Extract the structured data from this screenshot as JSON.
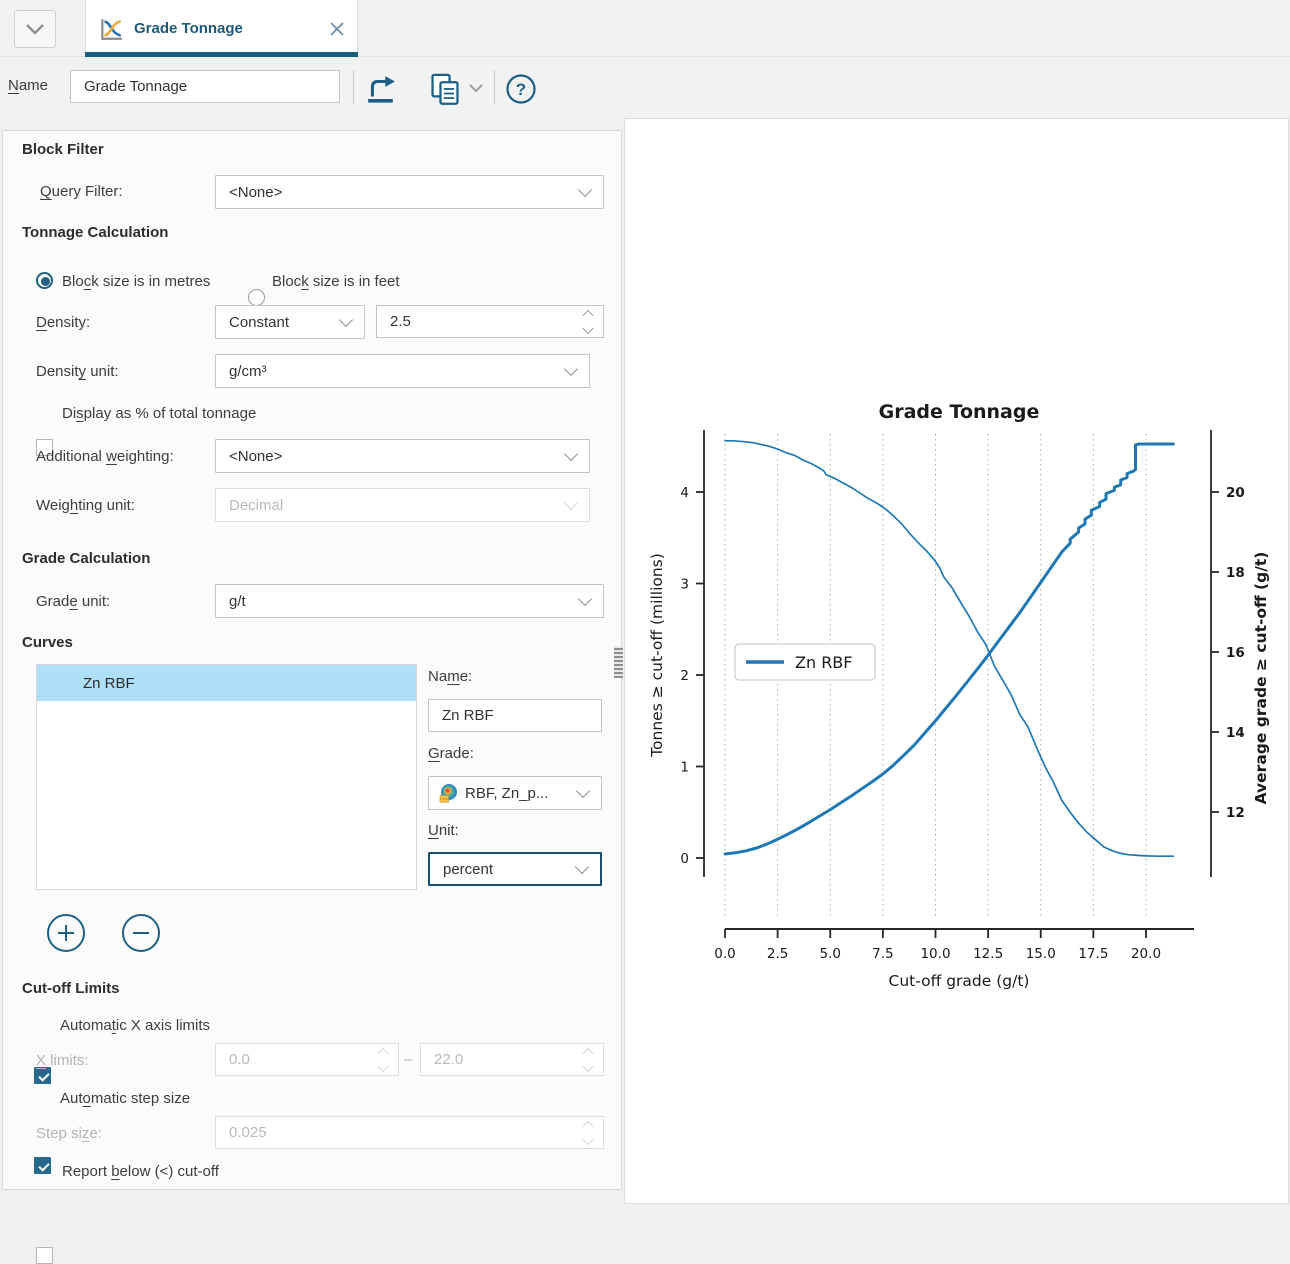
{
  "tab_bar": {
    "tab_title": "Grade Tonnage"
  },
  "toolbar": {
    "name_label": "[N]ame",
    "name_value": "Grade Tonnage"
  },
  "form": {
    "block_filter_heading": "Block Filter",
    "query_filter_label": "[Q]uery Filter:",
    "query_filter_value": "<None>",
    "tonnage_heading": "Tonnage Calculation",
    "radio_metres_label": "Blo[c]k size is in metres",
    "radio_feet_label": "Bloc[k] size is in feet",
    "density_label": "[D]ensity:",
    "density_mode_value": "Constant",
    "density_value": "2.5",
    "density_unit_label": "Densit[y] unit:",
    "density_unit_value": "g/cm³",
    "display_pct_label": "Di[s]play as % of total tonnage",
    "add_weight_label": "Additional [w]eighting:",
    "add_weight_value": "<None>",
    "weight_unit_label": "Weig[h]ting unit:",
    "weight_unit_value": "Decimal",
    "grade_calc_heading": "Grade Calculation",
    "grade_unit_label": "Grad[e] unit:",
    "grade_unit_value": "g/t",
    "curves_heading": "Curves",
    "curve_list": [
      "Zn RBF"
    ],
    "curve_name_label": "Na[m]e:",
    "curve_name_value": "Zn RBF",
    "curve_grade_label": "[G]rade:",
    "curve_grade_value": "RBF, Zn_p...",
    "curve_unit_label": "[U]nit:",
    "curve_unit_value": "percent",
    "cutoff_heading": "Cut-off Limits",
    "auto_x_label": "Automa[t]ic X axis limits",
    "x_limits_label": "[X] limits:",
    "x_min_value": "0.0",
    "range_dash": "–",
    "x_max_value": "22.0",
    "auto_step_label": "Aut[o]matic step size",
    "step_label": "Step si[z]e:",
    "step_value": "0.025",
    "report_below_label": "Report [b]elow (<) cut-off"
  },
  "chart_data": {
    "type": "line",
    "title": "Grade Tonnage",
    "xlabel": "Cut-off grade (g/t)",
    "ylabel_left": "Tonnes ≥ cut-off (millions)",
    "ylabel_right": "Average grade ≥ cut-off (g/t)",
    "legend": [
      "Zn RBF"
    ],
    "legend_position": "center-left",
    "series_color": "#1f77b4",
    "grid": "vertical-dotted",
    "xlim": [
      0,
      22.3
    ],
    "x_ticks": [
      0.0,
      2.5,
      5.0,
      7.5,
      10.0,
      12.5,
      15.0,
      17.5,
      20.0
    ],
    "ylim_left": [
      0,
      4.7
    ],
    "left_ticks": [
      0,
      1,
      2,
      3,
      4
    ],
    "ylim_right": [
      10.4,
      21.6
    ],
    "right_ticks": [
      12,
      14,
      16,
      18,
      20
    ],
    "series": [
      {
        "name": "Zn RBF",
        "role": "tonnage-above-cutoff",
        "axis": "left",
        "line_width": 1.7,
        "points": [
          [
            0,
            4.56
          ],
          [
            0.4,
            4.56
          ],
          [
            0.9,
            4.55
          ],
          [
            1.3,
            4.54
          ],
          [
            1.7,
            4.52
          ],
          [
            2.1,
            4.5
          ],
          [
            2.5,
            4.47
          ],
          [
            2.9,
            4.43
          ],
          [
            3.3,
            4.4
          ],
          [
            3.7,
            4.35
          ],
          [
            4.1,
            4.31
          ],
          [
            4.5,
            4.26
          ],
          [
            4.7,
            4.23
          ],
          [
            4.8,
            4.19
          ],
          [
            5.2,
            4.15
          ],
          [
            5.6,
            4.1
          ],
          [
            6.0,
            4.05
          ],
          [
            6.4,
            3.99
          ],
          [
            6.8,
            3.93
          ],
          [
            7.2,
            3.88
          ],
          [
            7.6,
            3.82
          ],
          [
            8.0,
            3.74
          ],
          [
            8.4,
            3.65
          ],
          [
            8.8,
            3.54
          ],
          [
            9.2,
            3.44
          ],
          [
            9.6,
            3.35
          ],
          [
            10.0,
            3.24
          ],
          [
            10.2,
            3.17
          ],
          [
            10.4,
            3.07
          ],
          [
            10.8,
            2.95
          ],
          [
            11.2,
            2.79
          ],
          [
            11.6,
            2.64
          ],
          [
            12.0,
            2.47
          ],
          [
            12.4,
            2.33
          ],
          [
            12.8,
            2.1
          ],
          [
            13.2,
            1.94
          ],
          [
            13.6,
            1.78
          ],
          [
            14.0,
            1.57
          ],
          [
            14.4,
            1.43
          ],
          [
            14.8,
            1.21
          ],
          [
            15.2,
            1.0
          ],
          [
            15.6,
            0.83
          ],
          [
            16.0,
            0.63
          ],
          [
            16.4,
            0.5
          ],
          [
            16.8,
            0.38
          ],
          [
            17.2,
            0.28
          ],
          [
            17.6,
            0.2
          ],
          [
            18.0,
            0.12
          ],
          [
            18.4,
            0.08
          ],
          [
            18.8,
            0.05
          ],
          [
            19.2,
            0.035
          ],
          [
            19.6,
            0.028
          ],
          [
            20.0,
            0.023
          ],
          [
            20.6,
            0.02
          ],
          [
            21.3,
            0.02
          ]
        ]
      },
      {
        "name": "Zn RBF",
        "role": "average-grade-above-cutoff",
        "axis": "right",
        "line_width": 3,
        "points": [
          [
            0,
            10.95
          ],
          [
            0.5,
            10.98
          ],
          [
            1.0,
            11.03
          ],
          [
            1.5,
            11.1
          ],
          [
            2.0,
            11.2
          ],
          [
            2.5,
            11.32
          ],
          [
            3.0,
            11.45
          ],
          [
            3.5,
            11.59
          ],
          [
            4.0,
            11.74
          ],
          [
            4.5,
            11.9
          ],
          [
            5.0,
            12.06
          ],
          [
            5.5,
            12.23
          ],
          [
            6.0,
            12.4
          ],
          [
            6.5,
            12.58
          ],
          [
            7.0,
            12.76
          ],
          [
            7.5,
            12.95
          ],
          [
            8.0,
            13.17
          ],
          [
            8.5,
            13.42
          ],
          [
            9.0,
            13.68
          ],
          [
            9.5,
            13.98
          ],
          [
            10.0,
            14.28
          ],
          [
            10.5,
            14.6
          ],
          [
            11.0,
            14.92
          ],
          [
            11.5,
            15.25
          ],
          [
            12.0,
            15.58
          ],
          [
            12.5,
            15.92
          ],
          [
            13.0,
            16.28
          ],
          [
            13.5,
            16.63
          ],
          [
            14.0,
            16.98
          ],
          [
            14.5,
            17.36
          ],
          [
            15.0,
            17.74
          ],
          [
            15.5,
            18.12
          ],
          [
            16.0,
            18.5
          ],
          [
            16.4,
            18.72
          ],
          [
            16.4,
            18.82
          ],
          [
            16.8,
            19.0
          ],
          [
            16.8,
            19.1
          ],
          [
            17.1,
            19.2
          ],
          [
            17.1,
            19.32
          ],
          [
            17.4,
            19.42
          ],
          [
            17.4,
            19.54
          ],
          [
            17.8,
            19.64
          ],
          [
            17.8,
            19.74
          ],
          [
            18.1,
            19.82
          ],
          [
            18.1,
            19.96
          ],
          [
            18.5,
            20.04
          ],
          [
            18.5,
            20.12
          ],
          [
            18.8,
            20.18
          ],
          [
            18.8,
            20.3
          ],
          [
            19.1,
            20.36
          ],
          [
            19.1,
            20.46
          ],
          [
            19.4,
            20.52
          ],
          [
            19.5,
            20.56
          ],
          [
            19.5,
            21.18
          ],
          [
            19.7,
            21.2
          ],
          [
            21.3,
            21.2
          ]
        ]
      }
    ]
  }
}
